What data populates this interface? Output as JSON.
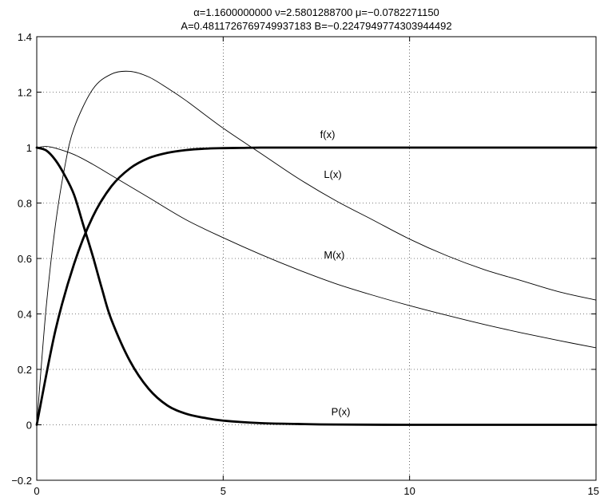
{
  "chart_data": {
    "type": "line",
    "title_lines": [
      "α=1.1600000000          ν=2.5801288700          μ=−0.0782271150",
      "A=0.4811726769749937183  B=−0.2247949774303944492"
    ],
    "xlabel": "",
    "ylabel": "",
    "xlim": [
      0,
      15
    ],
    "ylim": [
      -0.2,
      1.4
    ],
    "x_ticks": [
      "0",
      "5",
      "10",
      "15"
    ],
    "y_ticks": [
      "−0.2",
      "0",
      "0.2",
      "0.4",
      "0.6",
      "0.8",
      "1",
      "1.2",
      "1.4"
    ],
    "grid": true,
    "series": [
      {
        "name": "f(x)",
        "weight": "thick",
        "x": [
          0,
          0.5,
          1,
          1.5,
          2,
          2.5,
          3,
          3.5,
          4,
          4.5,
          5,
          5.5,
          6,
          7,
          8,
          9,
          10,
          12,
          15
        ],
        "y": [
          0,
          0.34,
          0.58,
          0.75,
          0.86,
          0.925,
          0.962,
          0.981,
          0.991,
          0.996,
          0.998,
          0.999,
          1,
          1,
          1,
          1,
          1,
          1,
          1
        ]
      },
      {
        "name": "L(x)",
        "weight": "thin",
        "x": [
          0,
          0.25,
          0.5,
          0.75,
          1,
          1.5,
          2,
          2.5,
          3,
          3.5,
          4,
          5,
          6,
          7,
          8,
          9,
          10,
          11,
          12,
          13,
          14,
          15
        ],
        "y": [
          0,
          0.42,
          0.72,
          0.93,
          1.07,
          1.21,
          1.265,
          1.275,
          1.255,
          1.215,
          1.17,
          1.07,
          0.98,
          0.89,
          0.81,
          0.74,
          0.67,
          0.61,
          0.56,
          0.52,
          0.48,
          0.45
        ]
      },
      {
        "name": "M(x)",
        "weight": "thin",
        "x": [
          0,
          0.25,
          0.5,
          1,
          1.5,
          2,
          3,
          4,
          5,
          6,
          7,
          8,
          9,
          10,
          11,
          12,
          13,
          14,
          15
        ],
        "y": [
          1,
          1.004,
          0.998,
          0.975,
          0.94,
          0.9,
          0.82,
          0.74,
          0.675,
          0.615,
          0.56,
          0.51,
          0.468,
          0.43,
          0.395,
          0.362,
          0.332,
          0.304,
          0.278
        ]
      },
      {
        "name": "P(x)",
        "weight": "thick",
        "x": [
          0,
          0.25,
          0.5,
          0.75,
          1,
          1.25,
          1.5,
          1.75,
          2,
          2.5,
          3,
          3.5,
          4,
          4.5,
          5,
          6,
          7,
          8,
          10,
          12,
          15
        ],
        "y": [
          1,
          0.99,
          0.955,
          0.9,
          0.83,
          0.72,
          0.61,
          0.49,
          0.38,
          0.23,
          0.13,
          0.07,
          0.04,
          0.025,
          0.015,
          0.006,
          0.003,
          0.001,
          0,
          0,
          0
        ]
      }
    ],
    "labels": [
      {
        "text": "f(x)",
        "x": 7.6,
        "y": 1.035
      },
      {
        "text": "L(x)",
        "x": 7.7,
        "y": 0.89
      },
      {
        "text": "M(x)",
        "x": 7.7,
        "y": 0.6
      },
      {
        "text": "P(x)",
        "x": 7.9,
        "y": 0.035
      }
    ]
  }
}
